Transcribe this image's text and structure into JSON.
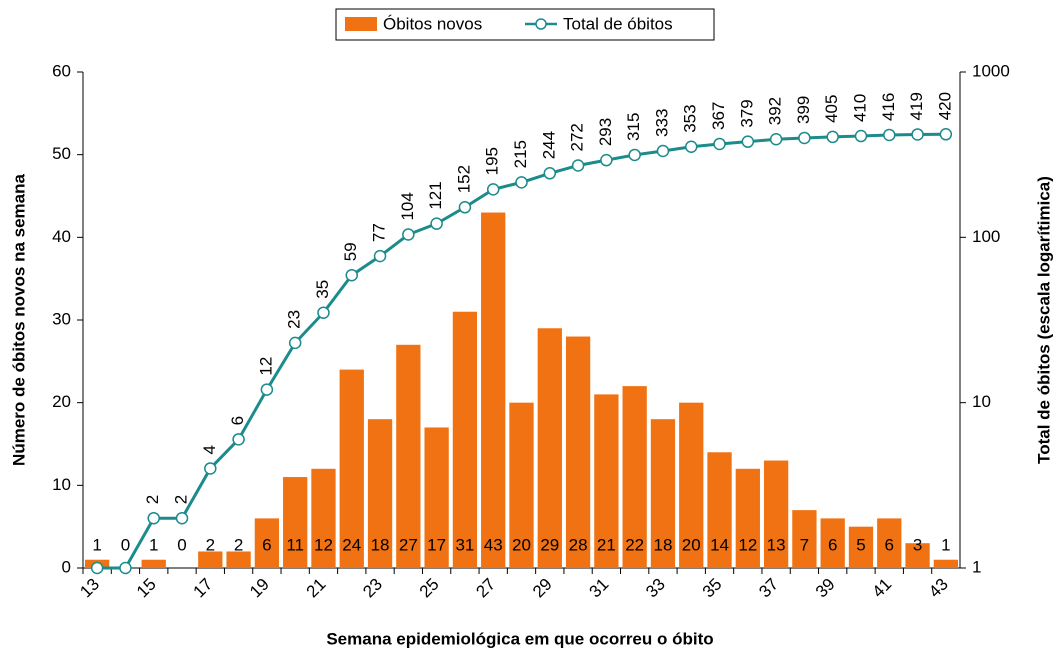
{
  "chart_data": {
    "type": "bar_line",
    "x_label": "Semana epidemiológica em que ocorreu o óbito",
    "y_label": "Número de óbitos novos na semana",
    "y2_label": "Total de óbitos (escala logarítimica)",
    "categories": [
      "13",
      null,
      "15",
      null,
      "17",
      null,
      "19",
      null,
      "21",
      null,
      "23",
      null,
      "25",
      null,
      "27",
      null,
      "29",
      null,
      "31",
      null,
      "33",
      null,
      "35",
      null,
      "37",
      null,
      "39",
      null,
      "41",
      null,
      "43"
    ],
    "ylim": [
      0,
      60
    ],
    "yticks": [
      0,
      10,
      20,
      30,
      40,
      50,
      60
    ],
    "y2lim": [
      1,
      1000
    ],
    "y2ticks": [
      1,
      10,
      100,
      1000
    ],
    "y2_log": true,
    "series": [
      {
        "name": "Óbitos novos",
        "type": "bar",
        "color": "#f07212",
        "values": [
          1,
          0,
          1,
          0,
          2,
          2,
          6,
          11,
          12,
          24,
          18,
          27,
          17,
          31,
          43,
          20,
          29,
          28,
          21,
          22,
          18,
          20,
          14,
          12,
          13,
          7,
          6,
          5,
          6,
          3,
          1
        ]
      },
      {
        "name": "Total de óbitos",
        "type": "line",
        "axis": "y2",
        "color": "#1b8b8b",
        "values": [
          1,
          1,
          2,
          2,
          4,
          6,
          12,
          23,
          35,
          59,
          77,
          104,
          121,
          152,
          195,
          215,
          244,
          272,
          293,
          315,
          333,
          353,
          367,
          379,
          392,
          399,
          405,
          410,
          416,
          419,
          420
        ],
        "value_labels": [
          null,
          null,
          "2",
          "2",
          "4",
          "6",
          "12",
          "23",
          "35",
          "59",
          "77",
          "104",
          "121",
          "152",
          "195",
          "215",
          "244",
          "272",
          "293",
          "315",
          "333",
          "353",
          "367",
          "379",
          "392",
          "399",
          "405",
          "410",
          "416",
          "419",
          "420"
        ]
      }
    ],
    "legend": "top"
  }
}
